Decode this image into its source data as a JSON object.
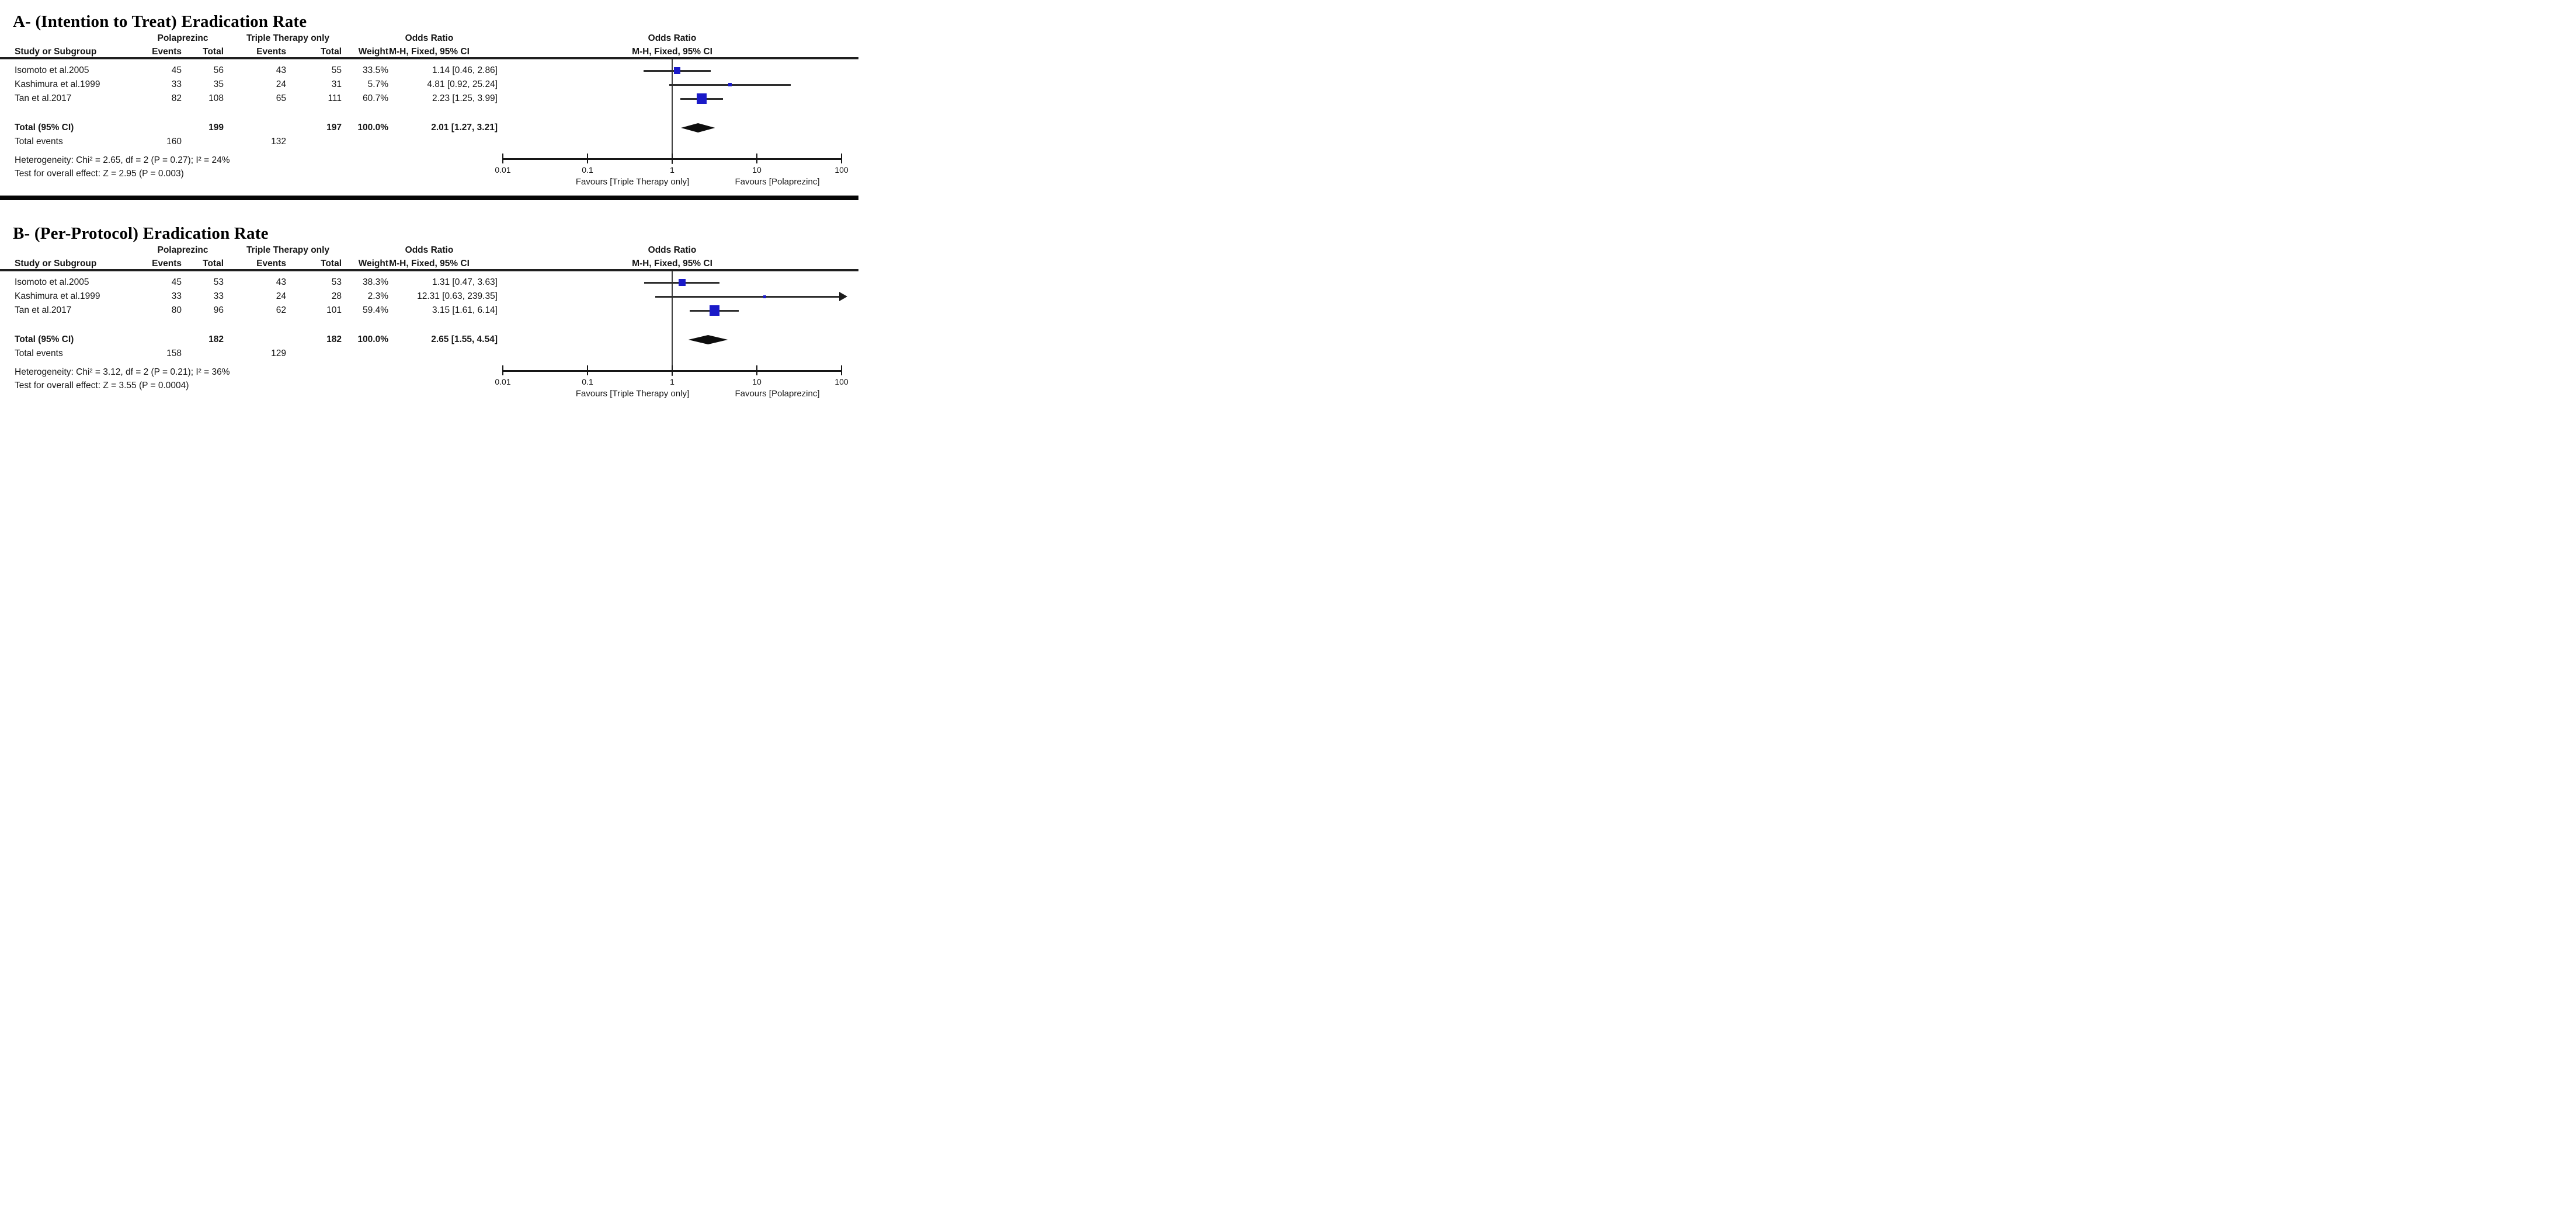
{
  "figure": {
    "kind": "forest-plot meta-analysis (RevMan style)"
  },
  "colors": {
    "effect_square": "#1a1ac8",
    "diamond": "#0d0d0d",
    "ci_line": "#2e2e2e",
    "arrow": "#1c1c1c"
  },
  "sections": [
    {
      "title": "A- (Intention to Treat) Eradication Rate",
      "table": {
        "group_headers": {
          "treatment": "Polaprezinc",
          "control": "Triple Therapy only",
          "or": "Odds Ratio"
        },
        "col_headers": {
          "study": "Study or Subgroup",
          "events": "Events",
          "total": "Total",
          "events2": "Events",
          "total2": "Total",
          "weight": "Weight",
          "mh": "M-H, Fixed, 95% CI"
        },
        "plot_headers": {
          "line1": "Odds Ratio",
          "line2": "M-H, Fixed, 95% CI"
        },
        "rows": [
          {
            "study": "Isomoto et al.2005",
            "e1": "45",
            "t1": "56",
            "e2": "43",
            "t2": "55",
            "weight": "33.5%",
            "or_ci": "1.14 [0.46, 2.86]"
          },
          {
            "study": "Kashimura et al.1999",
            "e1": "33",
            "t1": "35",
            "e2": "24",
            "t2": "31",
            "weight": "5.7%",
            "or_ci": "4.81 [0.92, 25.24]"
          },
          {
            "study": "Tan et al.2017",
            "e1": "82",
            "t1": "108",
            "e2": "65",
            "t2": "111",
            "weight": "60.7%",
            "or_ci": "2.23 [1.25, 3.99]"
          }
        ],
        "total": {
          "label": "Total (95% CI)",
          "t1": "199",
          "t2": "197",
          "weight": "100.0%",
          "or_ci": "2.01 [1.27, 3.21]"
        },
        "total_events": {
          "label": "Total events",
          "e1": "160",
          "e2": "132"
        },
        "heterogeneity": "Heterogeneity: Chi² = 2.65, df = 2 (P = 0.27); I² = 24%",
        "overall_effect": "Test for overall effect: Z = 2.95 (P = 0.003)"
      }
    },
    {
      "title": "B- (Per-Protocol) Eradication Rate",
      "table": {
        "group_headers": {
          "treatment": "Polaprezinc",
          "control": "Triple Therapy only",
          "or": "Odds Ratio"
        },
        "col_headers": {
          "study": "Study or Subgroup",
          "events": "Events",
          "total": "Total",
          "events2": "Events",
          "total2": "Total",
          "weight": "Weight",
          "mh": "M-H, Fixed, 95% CI"
        },
        "plot_headers": {
          "line1": "Odds Ratio",
          "line2": "M-H, Fixed, 95% CI"
        },
        "rows": [
          {
            "study": "Isomoto et al.2005",
            "e1": "45",
            "t1": "53",
            "e2": "43",
            "t2": "53",
            "weight": "38.3%",
            "or_ci": "1.31 [0.47, 3.63]"
          },
          {
            "study": "Kashimura et al.1999",
            "e1": "33",
            "t1": "33",
            "e2": "24",
            "t2": "28",
            "weight": "2.3%",
            "or_ci": "12.31 [0.63, 239.35]"
          },
          {
            "study": "Tan et al.2017",
            "e1": "80",
            "t1": "96",
            "e2": "62",
            "t2": "101",
            "weight": "59.4%",
            "or_ci": "3.15 [1.61, 6.14]"
          }
        ],
        "total": {
          "label": "Total (95% CI)",
          "t1": "182",
          "t2": "182",
          "weight": "100.0%",
          "or_ci": "2.65 [1.55, 4.54]"
        },
        "total_events": {
          "label": "Total events",
          "e1": "158",
          "e2": "129"
        },
        "heterogeneity": "Heterogeneity: Chi² = 3.12, df = 2 (P = 0.21); I² = 36%",
        "overall_effect": "Test for overall effect: Z = 3.55 (P = 0.0004)"
      }
    }
  ],
  "chart_data": [
    {
      "type": "forest",
      "title": "A- (Intention to Treat) Eradication Rate",
      "effect_measure": "Odds Ratio, M-H, Fixed, 95% CI",
      "x_scale": "log10",
      "xlim": [
        0.01,
        100
      ],
      "x_ticks": [
        0.01,
        0.1,
        1,
        10,
        100
      ],
      "x_tick_labels": [
        "0.01",
        "0.1",
        "1",
        "10",
        "100"
      ],
      "axis_labels": {
        "left": "Favours [Triple Therapy only]",
        "right": "Favours [Polaprezinc]"
      },
      "studies": [
        {
          "name": "Isomoto et al.2005",
          "or": 1.14,
          "ci_low": 0.46,
          "ci_high": 2.86,
          "weight_pct": 33.5
        },
        {
          "name": "Kashimura et al.1999",
          "or": 4.81,
          "ci_low": 0.92,
          "ci_high": 25.24,
          "weight_pct": 5.7
        },
        {
          "name": "Tan et al.2017",
          "or": 2.23,
          "ci_low": 1.25,
          "ci_high": 3.99,
          "weight_pct": 60.7
        }
      ],
      "total": {
        "or": 2.01,
        "ci_low": 1.27,
        "ci_high": 3.21
      }
    },
    {
      "type": "forest",
      "title": "B- (Per-Protocol) Eradication Rate",
      "effect_measure": "Odds Ratio, M-H, Fixed, 95% CI",
      "x_scale": "log10",
      "xlim": [
        0.01,
        100
      ],
      "x_ticks": [
        0.01,
        0.1,
        1,
        10,
        100
      ],
      "x_tick_labels": [
        "0.01",
        "0.1",
        "1",
        "10",
        "100"
      ],
      "axis_labels": {
        "left": "Favours [Triple Therapy only]",
        "right": "Favours [Polaprezinc]"
      },
      "studies": [
        {
          "name": "Isomoto et al.2005",
          "or": 1.31,
          "ci_low": 0.47,
          "ci_high": 3.63,
          "weight_pct": 38.3
        },
        {
          "name": "Kashimura et al.1999",
          "or": 12.31,
          "ci_low": 0.63,
          "ci_high": 239.35,
          "weight_pct": 2.3
        },
        {
          "name": "Tan et al.2017",
          "or": 3.15,
          "ci_low": 1.61,
          "ci_high": 6.14,
          "weight_pct": 59.4
        }
      ],
      "total": {
        "or": 2.65,
        "ci_low": 1.55,
        "ci_high": 4.54
      }
    }
  ]
}
